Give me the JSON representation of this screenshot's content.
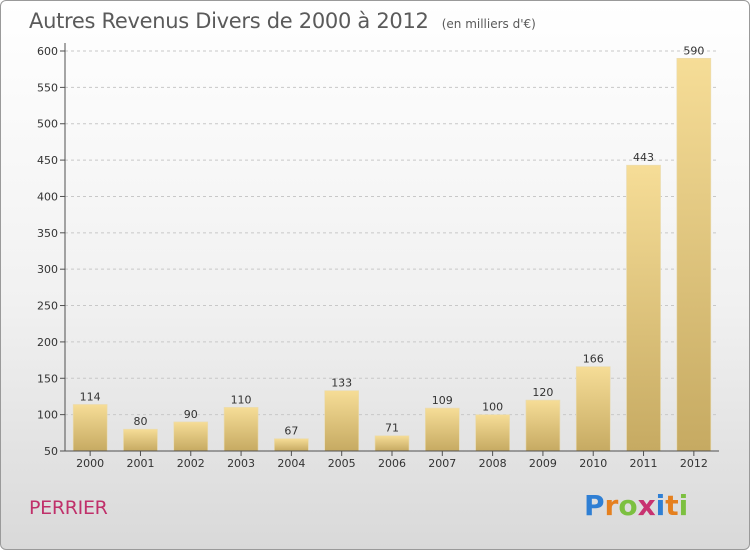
{
  "header": {
    "title": "Autres Revenus Divers de 2000 à 2012",
    "unit": "(en milliers d'€)"
  },
  "footer": {
    "commune": "PERRIER",
    "logo": "Proxiti"
  },
  "colors": {
    "bar_light": "#f6dd97",
    "bar_dark": "#c6aa62",
    "axis": "#4f4f4f",
    "grid": "#c8c8c8",
    "commune": "#c0306a",
    "title": "#5a5a5a"
  },
  "logo_letters": [
    {
      "ch": "P",
      "color": "#2f7fd4"
    },
    {
      "ch": "r",
      "color": "#e5801f"
    },
    {
      "ch": "o",
      "color": "#7cc040"
    },
    {
      "ch": "x",
      "color": "#c83270"
    },
    {
      "ch": "i",
      "color": "#2f7fd4"
    },
    {
      "ch": "t",
      "color": "#e5801f"
    },
    {
      "ch": "i",
      "color": "#7cc040"
    }
  ],
  "chart_data": {
    "type": "bar",
    "categories": [
      "2000",
      "2001",
      "2002",
      "2003",
      "2004",
      "2005",
      "2006",
      "2007",
      "2008",
      "2009",
      "2010",
      "2011",
      "2012"
    ],
    "values": [
      114,
      80,
      90,
      110,
      67,
      133,
      71,
      109,
      100,
      120,
      166,
      443,
      590
    ],
    "title": "Autres Revenus Divers de 2000 à 2012",
    "xlabel": "",
    "ylabel": "",
    "ylim": [
      50,
      600
    ],
    "yticks": [
      50,
      100,
      150,
      200,
      250,
      300,
      350,
      400,
      450,
      500,
      550,
      600
    ],
    "grid": "horizontal dashed",
    "data_labels": true
  }
}
